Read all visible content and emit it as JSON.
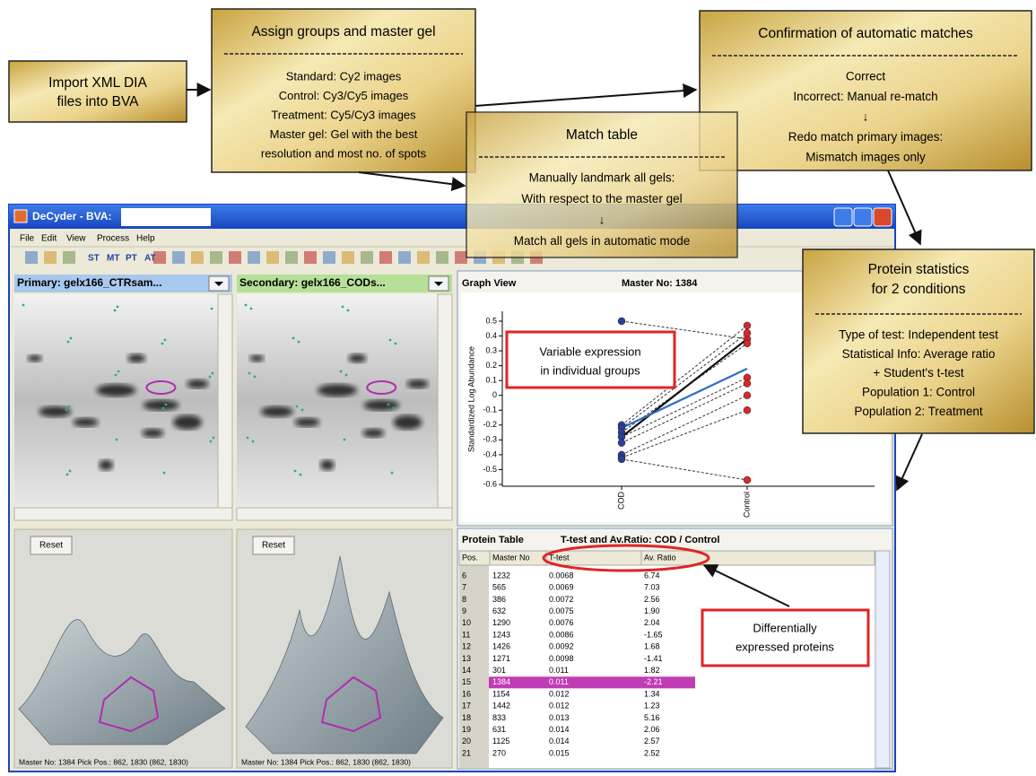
{
  "workflow": {
    "import": {
      "lines": [
        "Import XML DIA",
        "files into BVA"
      ]
    },
    "assign": {
      "title": "Assign groups and master gel",
      "lines": [
        "Standard: Cy2 images",
        "Control: Cy3/Cy5 images",
        "Treatment: Cy5/Cy3 images",
        "Master gel: Gel with the best",
        "resolution and most no. of spots"
      ]
    },
    "match": {
      "title": "Match table",
      "lines": [
        "Manually landmark all gels:",
        "With respect to the master gel",
        "↓",
        "Match all gels in automatic mode"
      ]
    },
    "confirm": {
      "title": "Confirmation of automatic matches",
      "lines": [
        "Correct",
        "Incorrect: Manual re-match",
        "↓",
        "Redo match primary images:",
        "Mismatch images only"
      ]
    },
    "stats": {
      "title_lines": [
        "Protein statistics",
        "for 2 conditions"
      ],
      "lines": [
        "Type of test: Independent test",
        "Statistical Info: Average ratio",
        "+ Student's t-test",
        "Population 1: Control",
        "Population 2: Treatment"
      ]
    }
  },
  "window": {
    "title": "DeCyder - BVA:",
    "menu": [
      "File",
      "Edit",
      "View",
      "Process",
      "Help"
    ],
    "toolbar": [
      "ST",
      "MT",
      "PT",
      "AT"
    ],
    "primary": "Primary: gelx166_CTRsam...",
    "secondary": "Secondary: gelx166_CODs...",
    "reset": "Reset",
    "status": "Master No: 1384  Pick Pos.: 862, 1830 (862, 1830)"
  },
  "graph": {
    "type": "line",
    "title": "Graph View",
    "master": "Master No: 1384",
    "ylabel": "Standardized Log Abundance",
    "categories": [
      "COD",
      "Control"
    ],
    "ylim": [
      -0.6,
      0.55
    ],
    "yticks": [
      0.5,
      0.4,
      0.3,
      0.2,
      0.1,
      0,
      -0.1,
      -0.2,
      -0.3,
      -0.4,
      -0.5,
      -0.6
    ],
    "samples": [
      [
        0.5,
        0.38
      ],
      [
        -0.2,
        0.47
      ],
      [
        -0.22,
        0.42
      ],
      [
        -0.25,
        0.35
      ],
      [
        -0.28,
        0.12
      ],
      [
        -0.32,
        0.08
      ],
      [
        -0.4,
        0
      ],
      [
        -0.42,
        -0.1
      ],
      [
        -0.43,
        -0.57
      ]
    ],
    "means": [
      {
        "color": "#111111",
        "values": [
          -0.28,
          0.38
        ]
      },
      {
        "color": "#2e6fc4",
        "values": [
          -0.22,
          0.18
        ]
      }
    ],
    "point_colors": [
      "#2a3f9a",
      "#d42a2a"
    ],
    "annotation": [
      "Variable expression",
      "in individual groups"
    ]
  },
  "protein_table": {
    "title": "Protein Table",
    "subtitle": "T-test and Av.Ratio: COD / Control",
    "columns": [
      "Pos.",
      "Master No",
      "T-test",
      "Av. Ratio"
    ],
    "rows": [
      [
        "6",
        "1232",
        "0.0068",
        "6.74"
      ],
      [
        "7",
        "565",
        "0.0069",
        "7.03"
      ],
      [
        "8",
        "386",
        "0.0072",
        "2.56"
      ],
      [
        "9",
        "632",
        "0.0075",
        "1.90"
      ],
      [
        "10",
        "1290",
        "0.0076",
        "2.04"
      ],
      [
        "11",
        "1243",
        "0.0086",
        "-1.65"
      ],
      [
        "12",
        "1426",
        "0.0092",
        "1.68"
      ],
      [
        "13",
        "1271",
        "0.0098",
        "-1.41"
      ],
      [
        "14",
        "301",
        "0.011",
        "1.82"
      ],
      [
        "15",
        "1384",
        "0.011",
        "-2.21"
      ],
      [
        "16",
        "1154",
        "0.012",
        "1.34"
      ],
      [
        "17",
        "1442",
        "0.012",
        "1.23"
      ],
      [
        "18",
        "833",
        "0.013",
        "5.16"
      ],
      [
        "19",
        "631",
        "0.014",
        "2.06"
      ],
      [
        "20",
        "1125",
        "0.014",
        "2.57"
      ],
      [
        "21",
        "270",
        "0.015",
        "2.52"
      ]
    ],
    "selected_row": 9,
    "annotation": [
      "Differentially",
      "expressed proteins"
    ]
  }
}
